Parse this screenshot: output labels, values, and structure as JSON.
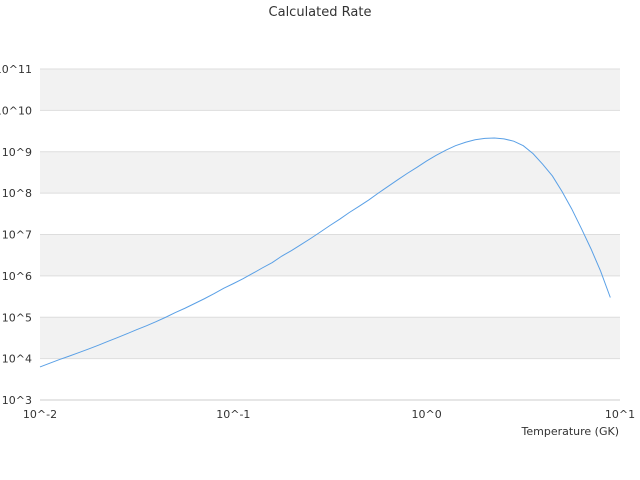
{
  "chart_data": {
    "type": "line",
    "title": "Calculated Rate",
    "xlabel": "Temperature (GK)",
    "ylabel": "",
    "xscale": "log",
    "yscale": "log",
    "xlim": [
      0.01,
      10
    ],
    "ylim": [
      1000,
      100000000000
    ],
    "grid": "horizontal alternating bands",
    "legend": "none",
    "x_tick_labels": [
      "10^-2",
      "10^-1",
      "10^0",
      "10^1"
    ],
    "y_tick_labels": [
      "10^3",
      "10^4",
      "10^5",
      "10^6",
      "10^7",
      "10^8",
      "10^9",
      "10^10",
      "10^11"
    ],
    "colors": {
      "line": "#5aa0e6",
      "band": "#f2f2f2",
      "grid": "#dddddd",
      "text": "#333333"
    },
    "series": [
      {
        "x": [
          0.01,
          0.0112,
          0.0126,
          0.0141,
          0.0159,
          0.0178,
          0.02,
          0.0224,
          0.0251,
          0.0282,
          0.0316,
          0.0355,
          0.0398,
          0.0447,
          0.0501,
          0.0562,
          0.0631,
          0.0708,
          0.0794,
          0.0891,
          0.1,
          0.112,
          0.126,
          0.141,
          0.159,
          0.178,
          0.2,
          0.224,
          0.251,
          0.282,
          0.316,
          0.355,
          0.398,
          0.447,
          0.501,
          0.562,
          0.631,
          0.708,
          0.794,
          0.891,
          1.0,
          1.12,
          1.26,
          1.41,
          1.59,
          1.78,
          2.0,
          2.24,
          2.51,
          2.82,
          3.16,
          3.55,
          3.98,
          4.47,
          5.01,
          5.62,
          6.31,
          7.08,
          7.94,
          8.91
        ],
        "y": [
          6300,
          7700,
          9500,
          11400,
          14000,
          17000,
          21000,
          26000,
          32000,
          40000,
          50000,
          62000,
          78000,
          100000,
          130000,
          165000,
          215000,
          280000,
          370000,
          500000,
          650000,
          850000,
          1150000,
          1550000,
          2100000,
          3000000,
          4100000,
          5700000,
          8000000,
          11500000,
          16500000,
          23500000,
          34000000,
          48000000,
          68000000,
          100000000,
          145000000,
          210000000,
          300000000,
          420000000,
          600000000,
          820000000,
          1100000000,
          1400000000,
          1700000000,
          1950000000,
          2100000000,
          2150000000,
          2050000000,
          1800000000,
          1400000000,
          900000000,
          500000000,
          260000000,
          110000000,
          42000000,
          14000000,
          4500000,
          1300000,
          300000
        ]
      }
    ]
  }
}
